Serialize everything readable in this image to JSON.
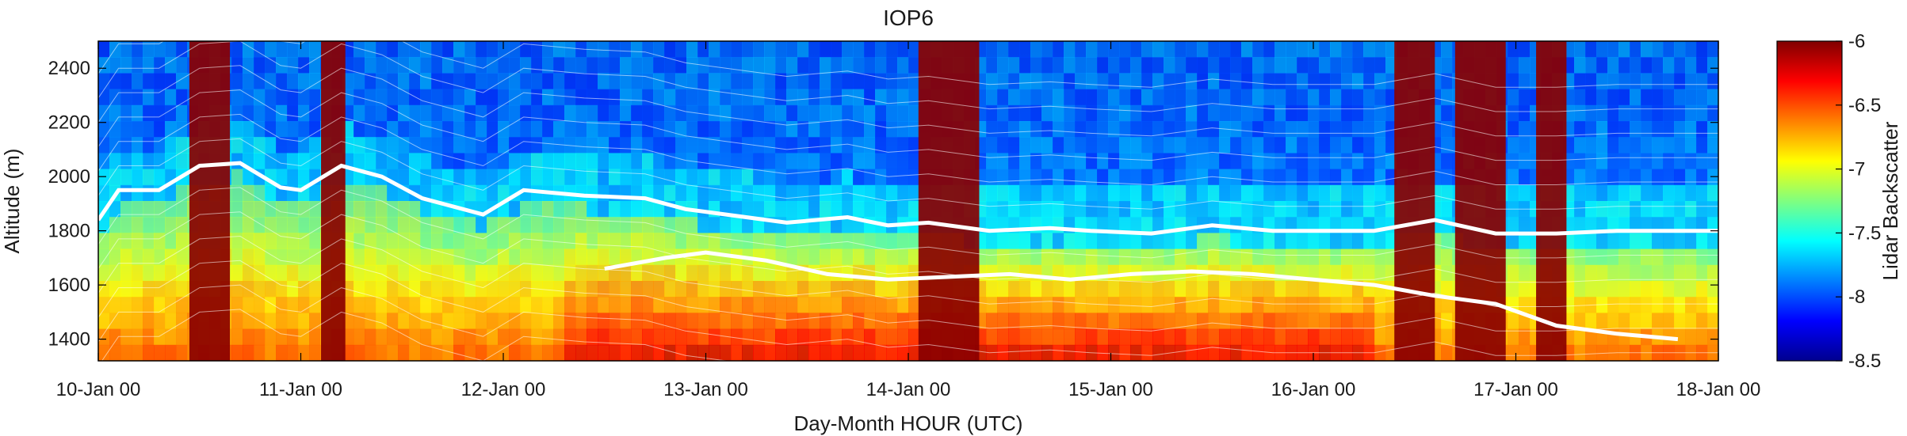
{
  "chart_data": {
    "type": "heatmap",
    "title": "IOP6",
    "xlabel": "Day-Month HOUR (UTC)",
    "ylabel": "Altitude (m)",
    "colorbar_label": "Lidar Backscatter",
    "x_tick_labels": [
      "10-Jan 00",
      "11-Jan 00",
      "12-Jan 00",
      "13-Jan 00",
      "14-Jan 00",
      "15-Jan 00",
      "16-Jan 00",
      "17-Jan 00",
      "18-Jan 00"
    ],
    "x_range_days": [
      0,
      8
    ],
    "y_ticks": [
      1400,
      1600,
      1800,
      2000,
      2200,
      2400
    ],
    "y_tick_labels": [
      "1400",
      "1600",
      "1800",
      "2000",
      "2200",
      "2400"
    ],
    "ylim": [
      1320,
      2500
    ],
    "colorbar_ticks": [
      -6,
      -6.5,
      -7,
      -7.5,
      -8,
      -8.5
    ],
    "colorbar_tick_labels": [
      "-6",
      "-6.5",
      "-7",
      "-7.5",
      "-8",
      "-8.5"
    ],
    "colorbar_range": [
      -8.5,
      -6
    ],
    "colormap": "jet",
    "contour_color": "#ffffff",
    "colormap_stops": [
      "#00008f",
      "#0000ff",
      "#00ffff",
      "#ffff00",
      "#ff0000",
      "#800000"
    ],
    "boundary_layer_top": {
      "x_days": [
        0,
        0.1,
        0.3,
        0.5,
        0.7,
        0.9,
        1.0,
        1.2,
        1.4,
        1.6,
        1.9,
        2.1,
        2.4,
        2.7,
        2.9,
        3.1,
        3.4,
        3.7,
        3.9,
        4.1,
        4.4,
        4.7,
        4.9,
        5.2,
        5.5,
        5.8,
        6.0,
        6.3,
        6.6,
        6.9,
        7.2,
        7.5,
        7.8,
        8.0
      ],
      "altitude_m": [
        1840,
        1950,
        1950,
        2040,
        2050,
        1960,
        1950,
        2040,
        2000,
        1920,
        1860,
        1950,
        1930,
        1920,
        1880,
        1860,
        1830,
        1850,
        1820,
        1830,
        1800,
        1810,
        1800,
        1790,
        1820,
        1800,
        1800,
        1800,
        1840,
        1790,
        1790,
        1800,
        1800,
        1800
      ]
    },
    "mixed_layer_top": {
      "x_days": [
        2.5,
        2.8,
        3.0,
        3.3,
        3.6,
        3.9,
        4.2,
        4.5,
        4.8,
        5.1,
        5.4,
        5.7,
        6.0,
        6.3,
        6.6,
        6.9,
        7.2,
        7.5,
        7.8
      ],
      "altitude_m": [
        1660,
        1700,
        1720,
        1690,
        1640,
        1620,
        1630,
        1640,
        1620,
        1640,
        1650,
        1640,
        1620,
        1600,
        1560,
        1530,
        1450,
        1420,
        1400
      ]
    }
  }
}
